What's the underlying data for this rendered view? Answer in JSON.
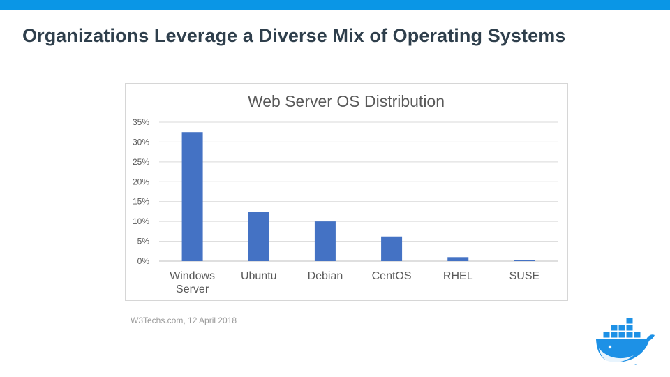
{
  "slide": {
    "title": "Organizations Leverage a Diverse Mix of Operating Systems",
    "source": "W3Techs.com, 12 April 2018",
    "accent_color": "#0a96e6",
    "logo": "docker-whale-icon"
  },
  "chart_data": {
    "type": "bar",
    "title": "Web Server OS Distribution",
    "categories": [
      [
        "Windows",
        "Server"
      ],
      [
        "Ubuntu"
      ],
      [
        "Debian"
      ],
      [
        "CentOS"
      ],
      [
        "RHEL"
      ],
      [
        "SUSE"
      ]
    ],
    "values": [
      32.5,
      12.4,
      10.0,
      6.2,
      1.0,
      0.3
    ],
    "yticks": [
      "0%",
      "5%",
      "10%",
      "15%",
      "20%",
      "25%",
      "30%",
      "35%"
    ],
    "ylim": [
      0,
      35
    ],
    "ytick_step": 5,
    "grid": true,
    "legend": "none",
    "bar_color": "#4472c4"
  }
}
